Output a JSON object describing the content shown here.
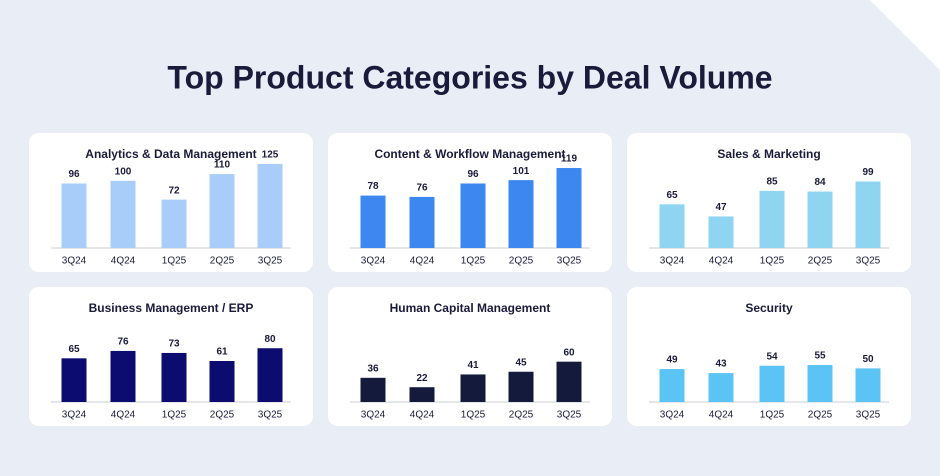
{
  "title": "Top Product Categories by Deal Volume",
  "chart_data": [
    {
      "type": "bar",
      "title": "Analytics & Data Management",
      "categories": [
        "3Q24",
        "4Q24",
        "1Q25",
        "2Q25",
        "3Q25"
      ],
      "values": [
        96,
        100,
        72,
        110,
        125
      ],
      "color": "#a8cdf8"
    },
    {
      "type": "bar",
      "title": "Content & Workflow Management",
      "categories": [
        "3Q24",
        "4Q24",
        "1Q25",
        "2Q25",
        "3Q25"
      ],
      "values": [
        78,
        76,
        96,
        101,
        119
      ],
      "color": "#3d87f0"
    },
    {
      "type": "bar",
      "title": "Sales & Marketing",
      "categories": [
        "3Q24",
        "4Q24",
        "1Q25",
        "2Q25",
        "3Q25"
      ],
      "values": [
        65,
        47,
        85,
        84,
        99
      ],
      "color": "#8fd5f1"
    },
    {
      "type": "bar",
      "title": "Business Management / ERP",
      "categories": [
        "3Q24",
        "4Q24",
        "1Q25",
        "2Q25",
        "3Q25"
      ],
      "values": [
        65,
        76,
        73,
        61,
        80
      ],
      "color": "#0b0b70"
    },
    {
      "type": "bar",
      "title": "Human Capital Management",
      "categories": [
        "3Q24",
        "4Q24",
        "1Q25",
        "2Q25",
        "3Q25"
      ],
      "values": [
        36,
        22,
        41,
        45,
        60
      ],
      "color": "#141a3c"
    },
    {
      "type": "bar",
      "title": "Security",
      "categories": [
        "3Q24",
        "4Q24",
        "1Q25",
        "2Q25",
        "3Q25"
      ],
      "values": [
        49,
        43,
        54,
        55,
        50
      ],
      "color": "#5bc4f5"
    }
  ]
}
